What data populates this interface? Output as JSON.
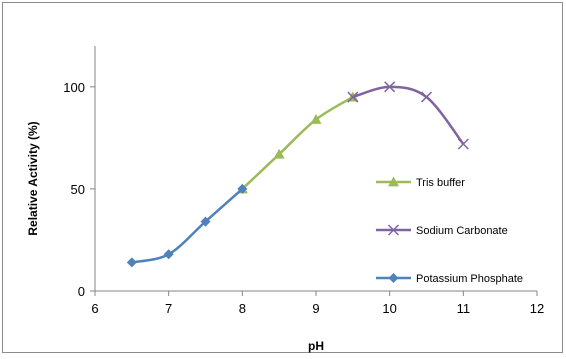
{
  "chart_data": {
    "type": "line",
    "title": "",
    "xlabel": "pH",
    "ylabel": "Relative Activity (%)",
    "xlim": [
      6,
      12
    ],
    "ylim": [
      0,
      120
    ],
    "x_ticks": [
      "6",
      "7",
      "8",
      "9",
      "10",
      "11",
      "12"
    ],
    "y_ticks": [
      "0",
      "50",
      "100"
    ],
    "grid": false,
    "legend_position": "right",
    "series": [
      {
        "name": "Tris buffer",
        "color": "#9bbb59",
        "marker": "triangle",
        "points": [
          {
            "x": 8,
            "y": 50
          },
          {
            "x": 8.5,
            "y": 67
          },
          {
            "x": 9,
            "y": 84
          },
          {
            "x": 9.5,
            "y": 95
          }
        ]
      },
      {
        "name": "Sodium Carbonate",
        "color": "#8064a2",
        "marker": "x",
        "points": [
          {
            "x": 9.5,
            "y": 95
          },
          {
            "x": 10,
            "y": 100
          },
          {
            "x": 10.5,
            "y": 95
          },
          {
            "x": 11,
            "y": 72
          }
        ]
      },
      {
        "name": "Potassium Phosphate",
        "color": "#4f81bd",
        "marker": "diamond",
        "points": [
          {
            "x": 6.5,
            "y": 14
          },
          {
            "x": 7,
            "y": 18
          },
          {
            "x": 7.5,
            "y": 34
          },
          {
            "x": 8,
            "y": 50
          }
        ]
      }
    ]
  }
}
